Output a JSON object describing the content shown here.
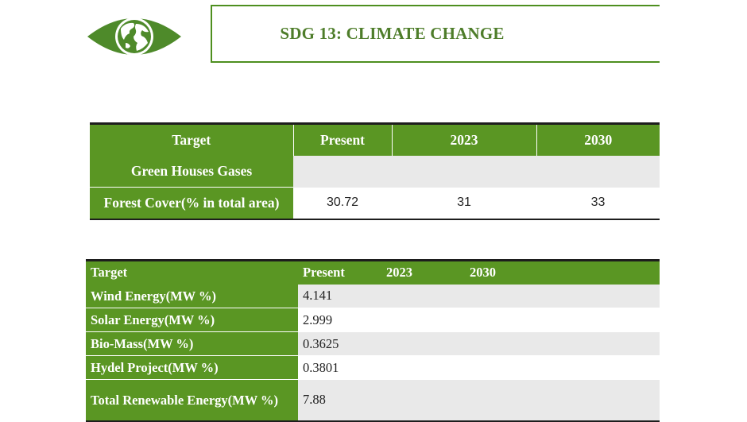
{
  "header": {
    "title": "SDG 13: CLIMATE CHANGE",
    "logo_icon": "globe-eye-icon"
  },
  "table1": {
    "columns": [
      "Target",
      "Present",
      "2023",
      "2030"
    ],
    "rows": [
      {
        "label": "Green Houses Gases",
        "present": "",
        "y2023": "",
        "y2030": ""
      },
      {
        "label": "Forest Cover(% in total area)",
        "present": "30.72",
        "y2023": "31",
        "y2030": "33"
      }
    ]
  },
  "table2": {
    "columns": [
      "Target",
      "Present",
      "2023",
      "2030"
    ],
    "rows": [
      {
        "label": "Wind Energy(MW  %)",
        "present": "4.141"
      },
      {
        "label": "Solar Energy(MW %)",
        "present": "2.999"
      },
      {
        "label": "Bio-Mass(MW %)",
        "present": "0.3625"
      },
      {
        "label": "Hydel Project(MW %)",
        "present": "0.3801"
      },
      {
        "label": "Total Renewable Energy(MW %)",
        "present": "7.88"
      }
    ]
  },
  "colors": {
    "green": "#5a9623",
    "title_green": "#4e7d2a",
    "gray_row": "#e9e9e9"
  }
}
